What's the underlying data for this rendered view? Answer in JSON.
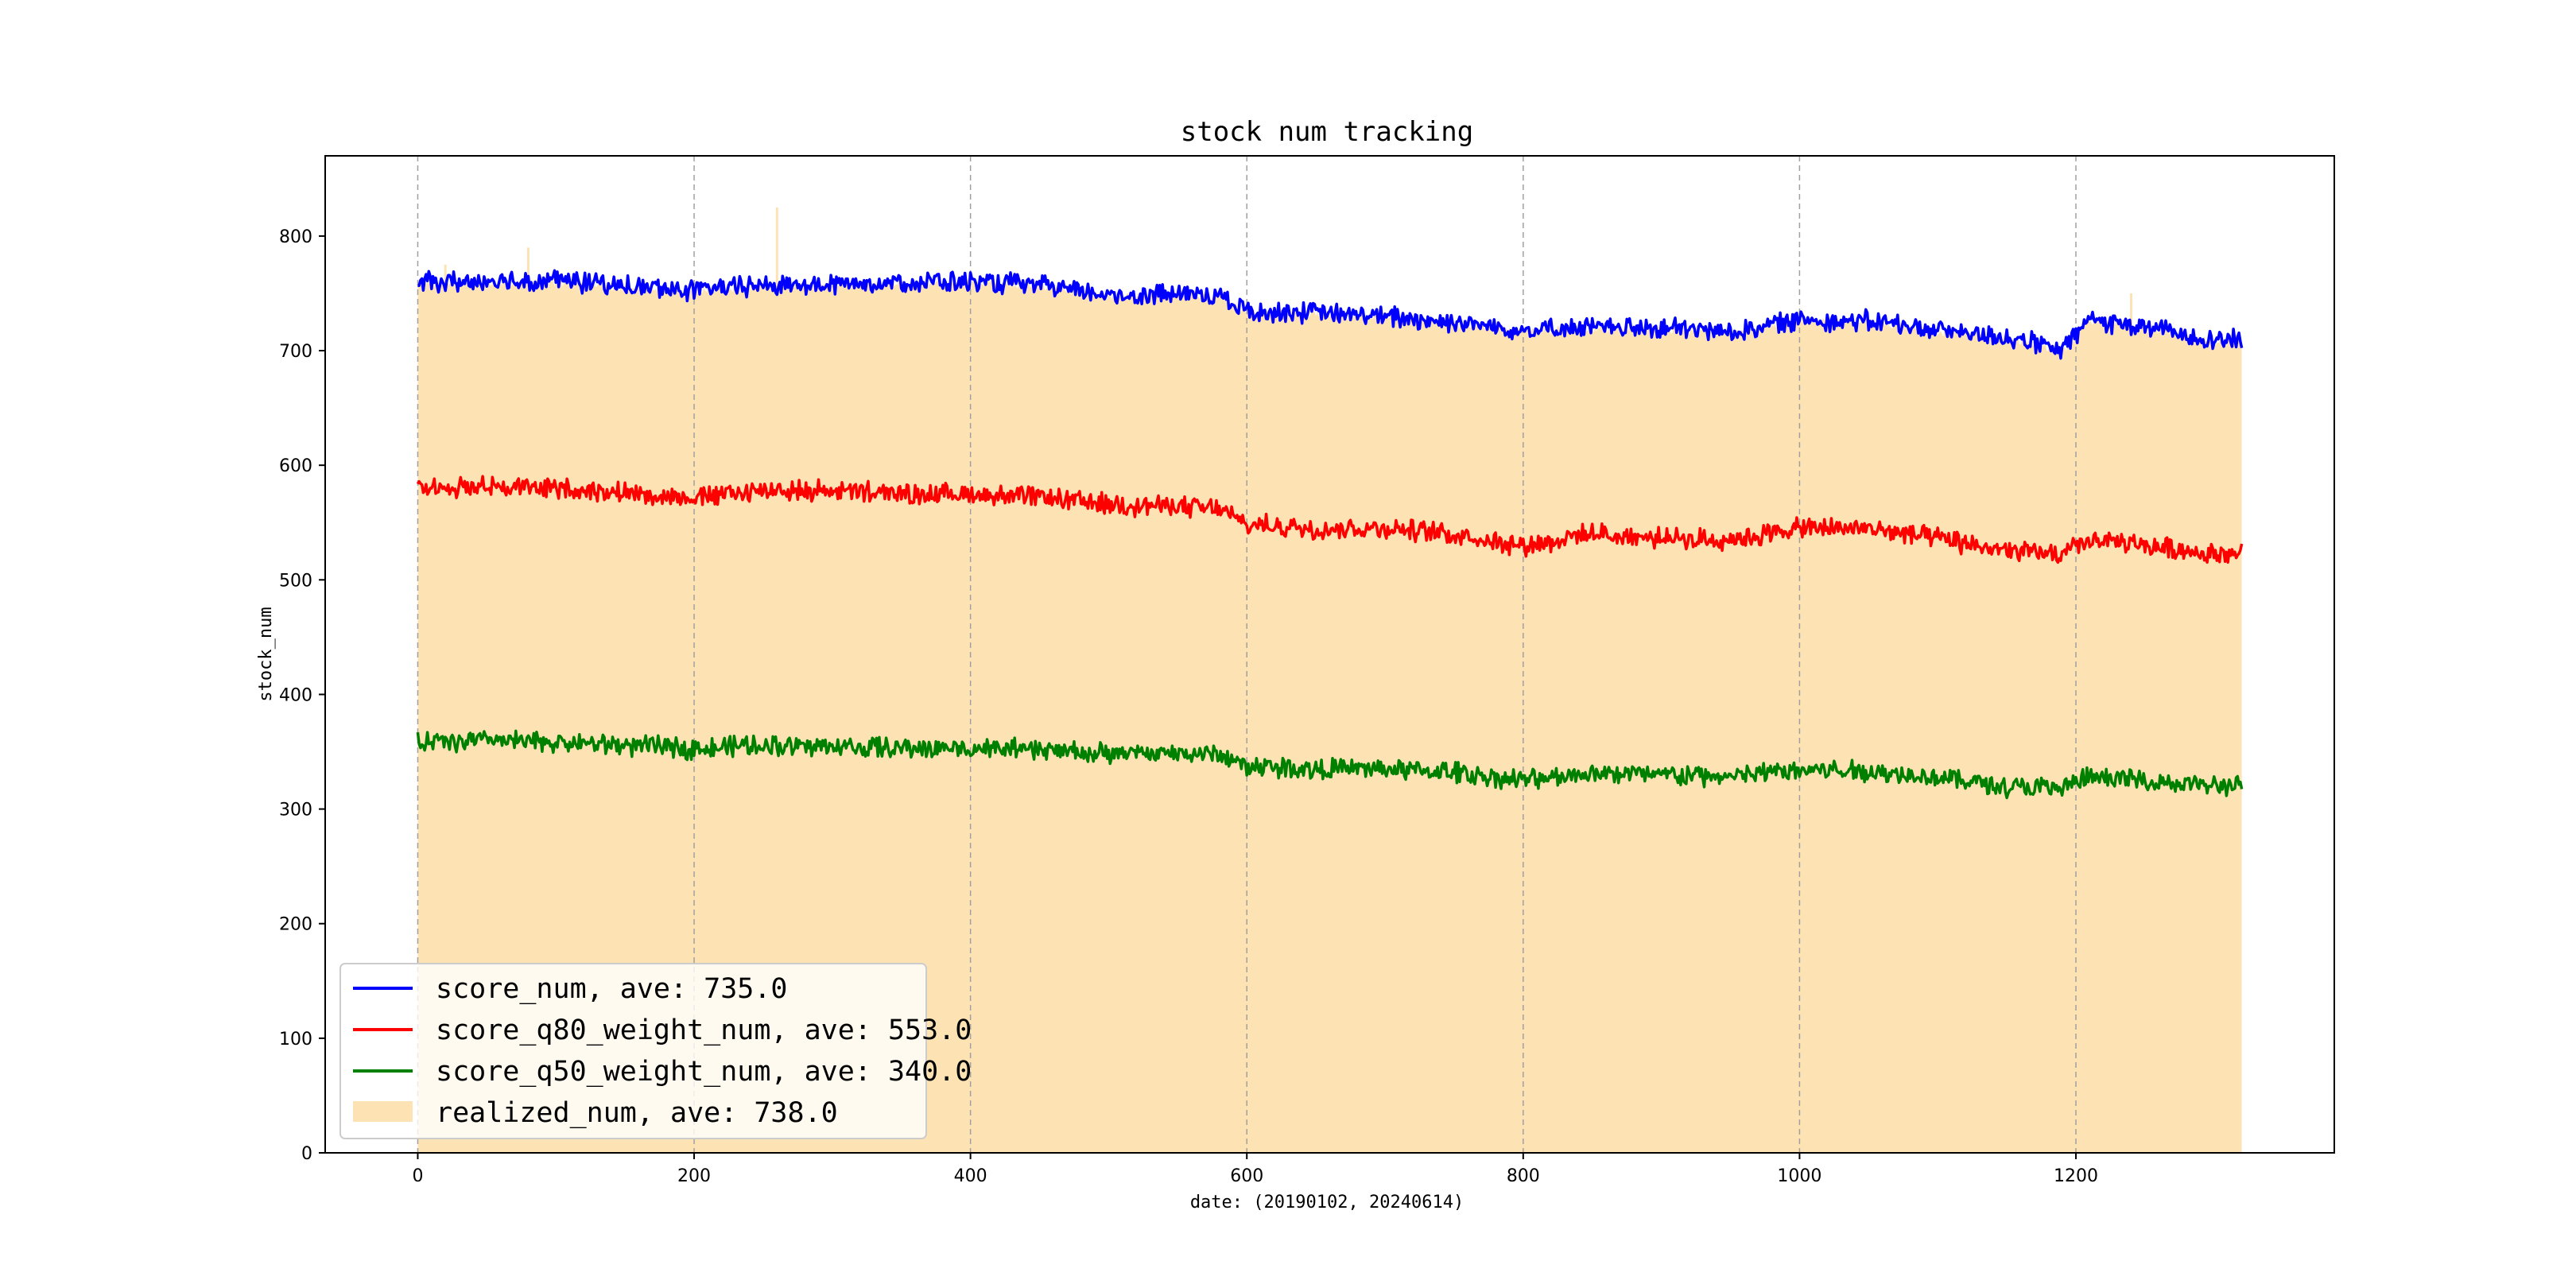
{
  "chart_data": {
    "type": "line",
    "title": "stock num tracking",
    "xlabel": "date: (20190102, 20240614)",
    "ylabel": "stock_num",
    "xlim": [
      -67,
      1387
    ],
    "ylim": [
      0,
      870
    ],
    "x_ticks": [
      0,
      200,
      400,
      600,
      800,
      1000,
      1200
    ],
    "y_ticks": [
      0,
      100,
      200,
      300,
      400,
      500,
      600,
      700,
      800
    ],
    "grid": {
      "x": true,
      "y": false
    },
    "legend_position": "lower-left",
    "series": [
      {
        "name": "score_num",
        "legend_label": "score_num, ave: 735.0",
        "kind": "line",
        "color": "#0000ff",
        "points": [
          [
            0,
            760
          ],
          [
            50,
            760
          ],
          [
            100,
            762
          ],
          [
            150,
            756
          ],
          [
            200,
            753
          ],
          [
            250,
            757
          ],
          [
            300,
            758
          ],
          [
            350,
            760
          ],
          [
            400,
            760
          ],
          [
            450,
            757
          ],
          [
            500,
            748
          ],
          [
            550,
            750
          ],
          [
            580,
            748
          ],
          [
            600,
            735
          ],
          [
            650,
            733
          ],
          [
            700,
            730
          ],
          [
            750,
            725
          ],
          [
            800,
            718
          ],
          [
            850,
            720
          ],
          [
            900,
            720
          ],
          [
            950,
            716
          ],
          [
            1000,
            727
          ],
          [
            1050,
            726
          ],
          [
            1100,
            718
          ],
          [
            1150,
            712
          ],
          [
            1190,
            700
          ],
          [
            1210,
            728
          ],
          [
            1250,
            720
          ],
          [
            1300,
            710
          ],
          [
            1320,
            710
          ]
        ]
      },
      {
        "name": "score_q80_weight_num",
        "legend_label": "score_q80_weight_num, ave: 553.0",
        "kind": "line",
        "color": "#ff0000",
        "points": [
          [
            0,
            580
          ],
          [
            50,
            582
          ],
          [
            100,
            580
          ],
          [
            150,
            576
          ],
          [
            200,
            572
          ],
          [
            250,
            578
          ],
          [
            300,
            578
          ],
          [
            350,
            575
          ],
          [
            400,
            575
          ],
          [
            450,
            572
          ],
          [
            500,
            566
          ],
          [
            550,
            564
          ],
          [
            580,
            562
          ],
          [
            600,
            548
          ],
          [
            650,
            545
          ],
          [
            700,
            545
          ],
          [
            750,
            540
          ],
          [
            800,
            530
          ],
          [
            850,
            540
          ],
          [
            900,
            536
          ],
          [
            950,
            535
          ],
          [
            1000,
            545
          ],
          [
            1050,
            545
          ],
          [
            1100,
            536
          ],
          [
            1150,
            525
          ],
          [
            1190,
            522
          ],
          [
            1210,
            535
          ],
          [
            1250,
            530
          ],
          [
            1300,
            523
          ],
          [
            1320,
            523
          ]
        ]
      },
      {
        "name": "score_q50_weight_num",
        "legend_label": "score_q50_weight_num, ave: 340.0",
        "kind": "line",
        "color": "#008000",
        "points": [
          [
            0,
            358
          ],
          [
            50,
            360
          ],
          [
            100,
            358
          ],
          [
            150,
            356
          ],
          [
            200,
            353
          ],
          [
            250,
            356
          ],
          [
            300,
            355
          ],
          [
            350,
            353
          ],
          [
            400,
            353
          ],
          [
            450,
            352
          ],
          [
            500,
            348
          ],
          [
            550,
            349
          ],
          [
            580,
            347
          ],
          [
            600,
            338
          ],
          [
            650,
            335
          ],
          [
            700,
            335
          ],
          [
            750,
            332
          ],
          [
            800,
            325
          ],
          [
            850,
            332
          ],
          [
            900,
            330
          ],
          [
            950,
            328
          ],
          [
            1000,
            335
          ],
          [
            1050,
            333
          ],
          [
            1100,
            328
          ],
          [
            1150,
            320
          ],
          [
            1190,
            318
          ],
          [
            1210,
            328
          ],
          [
            1250,
            325
          ],
          [
            1300,
            320
          ],
          [
            1320,
            320
          ]
        ]
      },
      {
        "name": "realized_num",
        "legend_label": "realized_num, ave: 738.0",
        "kind": "area",
        "color": "#fde3b3",
        "points": [
          [
            0,
            758
          ],
          [
            50,
            758
          ],
          [
            100,
            760
          ],
          [
            150,
            755
          ],
          [
            200,
            752
          ],
          [
            250,
            756
          ],
          [
            300,
            757
          ],
          [
            350,
            759
          ],
          [
            400,
            759
          ],
          [
            450,
            756
          ],
          [
            500,
            747
          ],
          [
            550,
            749
          ],
          [
            580,
            747
          ],
          [
            600,
            734
          ],
          [
            650,
            732
          ],
          [
            700,
            729
          ],
          [
            750,
            724
          ],
          [
            800,
            717
          ],
          [
            850,
            719
          ],
          [
            900,
            719
          ],
          [
            950,
            715
          ],
          [
            1000,
            726
          ],
          [
            1050,
            725
          ],
          [
            1100,
            717
          ],
          [
            1150,
            711
          ],
          [
            1190,
            699
          ],
          [
            1210,
            727
          ],
          [
            1250,
            719
          ],
          [
            1300,
            709
          ],
          [
            1320,
            709
          ]
        ],
        "spikes": [
          [
            20,
            775
          ],
          [
            80,
            790
          ],
          [
            260,
            825
          ],
          [
            1240,
            750
          ]
        ]
      }
    ]
  }
}
